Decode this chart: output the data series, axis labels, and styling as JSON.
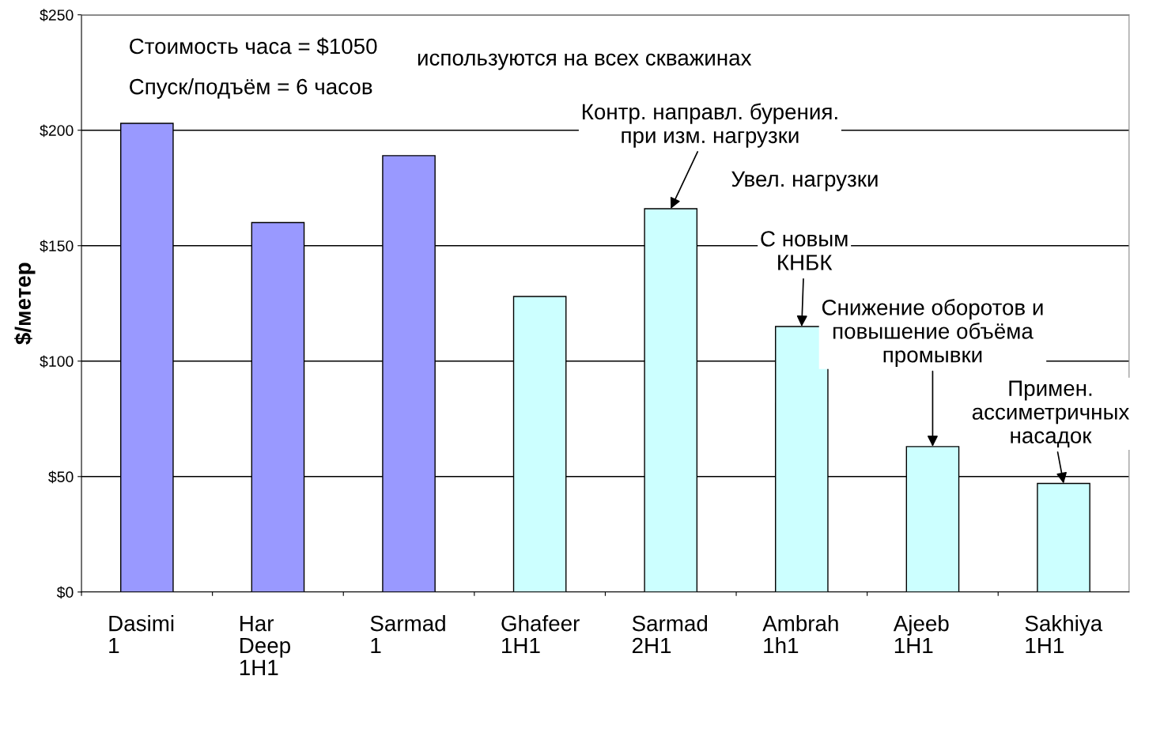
{
  "chart_data": {
    "type": "bar",
    "ylabel": "$/метер",
    "categories": [
      "Dasimi\n1",
      "Har\nDeep\n1H1",
      "Sarmad\n1",
      "Ghafeer\n1H1",
      "Sarmad\n2H1",
      "Ambrah\n1h1",
      "Ajeeb\n1H1",
      "Sakhiya\n1H1"
    ],
    "values": [
      203,
      160,
      189,
      128,
      166,
      115,
      63,
      47
    ],
    "colors": [
      "#9999ff",
      "#9999ff",
      "#9999ff",
      "#ccffff",
      "#ccffff",
      "#ccffff",
      "#ccffff",
      "#ccffff"
    ],
    "ylim": [
      0,
      250
    ],
    "yticks": [
      {
        "value": 0,
        "label": "$0"
      },
      {
        "value": 50,
        "label": "$50"
      },
      {
        "value": 100,
        "label": "$100"
      },
      {
        "value": 150,
        "label": "$150"
      },
      {
        "value": 200,
        "label": "$200"
      },
      {
        "value": 250,
        "label": "$250"
      }
    ],
    "grid": "y",
    "legend": false,
    "annotations": [
      "Стоимость часа = $1050",
      "Спуск/подъём = 6 часов",
      "используются на всех скважинах",
      "Увел. нагрузки",
      {
        "text": "Контр. направл. бурения.\nпри изм. нагрузки",
        "x": "Sarmad\n2H1",
        "y": 166
      },
      {
        "text": "С новым\nКНБК",
        "x": "Ambrah\n1h1",
        "y": 115
      },
      {
        "text": "Снижение оборотов и\nповышение объёма\nпромывки",
        "x": "Ajeeb\n1H1",
        "y": 63
      },
      {
        "text": "Примен.\nассиметричных\nнасадок",
        "x": "Sakhiya\n1H1",
        "y": 47
      }
    ]
  }
}
